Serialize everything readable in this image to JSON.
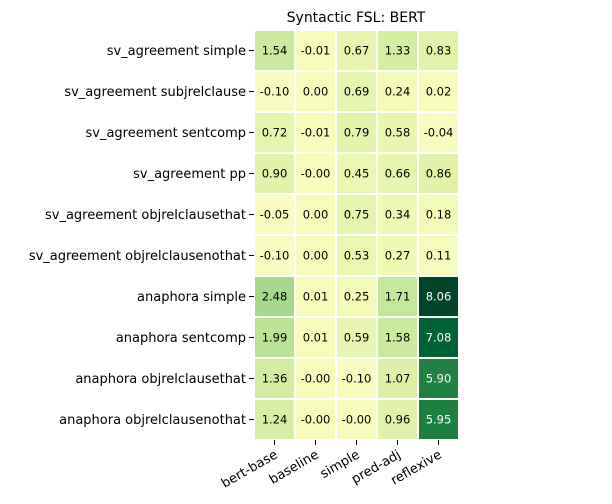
{
  "chart_data": {
    "type": "heatmap",
    "title": "Syntactic FSL: BERT",
    "xlabel": "",
    "ylabel": "",
    "columns": [
      "bert-base",
      "baseline",
      "simple",
      "pred-adj",
      "reflexive"
    ],
    "rows": [
      "sv_agreement simple",
      "sv_agreement subjrelclause",
      "sv_agreement sentcomp",
      "sv_agreement pp",
      "sv_agreement objrelclausethat",
      "sv_agreement objrelclausenothat",
      "anaphora simple",
      "anaphora sentcomp",
      "anaphora objrelclausethat",
      "anaphora objrelclausenothat"
    ],
    "values": [
      [
        1.54,
        -0.01,
        0.67,
        1.33,
        0.83
      ],
      [
        -0.1,
        0.0,
        0.69,
        0.24,
        0.02
      ],
      [
        0.72,
        -0.01,
        0.79,
        0.58,
        -0.04
      ],
      [
        0.9,
        -0.0,
        0.45,
        0.66,
        0.86
      ],
      [
        -0.05,
        0.0,
        0.75,
        0.34,
        0.18
      ],
      [
        -0.1,
        0.0,
        0.53,
        0.27,
        0.11
      ],
      [
        2.48,
        0.01,
        0.25,
        1.71,
        8.06
      ],
      [
        1.99,
        0.01,
        0.59,
        1.58,
        7.08
      ],
      [
        1.36,
        -0.0,
        -0.1,
        1.07,
        5.9
      ],
      [
        1.24,
        -0.0,
        -0.0,
        0.96,
        5.95
      ]
    ],
    "labels": [
      [
        "1.54",
        "-0.01",
        "0.67",
        "1.33",
        "0.83"
      ],
      [
        "-0.10",
        "0.00",
        "0.69",
        "0.24",
        "0.02"
      ],
      [
        "0.72",
        "-0.01",
        "0.79",
        "0.58",
        "-0.04"
      ],
      [
        "0.90",
        "-0.00",
        "0.45",
        "0.66",
        "0.86"
      ],
      [
        "-0.05",
        "0.00",
        "0.75",
        "0.34",
        "0.18"
      ],
      [
        "-0.10",
        "0.00",
        "0.53",
        "0.27",
        "0.11"
      ],
      [
        "2.48",
        "0.01",
        "0.25",
        "1.71",
        "8.06"
      ],
      [
        "1.99",
        "0.01",
        "0.59",
        "1.58",
        "7.08"
      ],
      [
        "1.36",
        "-0.00",
        "-0.10",
        "1.07",
        "5.90"
      ],
      [
        "1.24",
        "-0.00",
        "-0.00",
        "0.96",
        "5.95"
      ]
    ],
    "colormap": "YlGn",
    "grid": false,
    "legend": "none"
  }
}
